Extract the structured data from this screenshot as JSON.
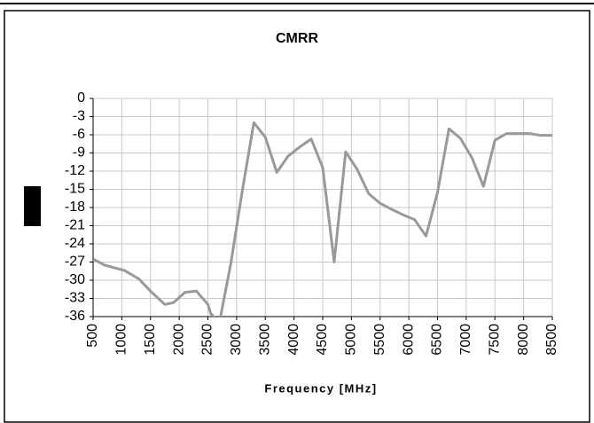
{
  "chart_data": {
    "type": "line",
    "title": "CMRR",
    "x_label": "Frequency [MHz]",
    "x": [
      500,
      700,
      1050,
      1300,
      1500,
      1750,
      1900,
      2100,
      2300,
      2500,
      2550,
      2700,
      2900,
      3100,
      3300,
      3500,
      3700,
      3900,
      4100,
      4300,
      4500,
      4700,
      4900,
      5100,
      5300,
      5500,
      5700,
      5900,
      6100,
      6300,
      6500,
      6700,
      6900,
      7100,
      7300,
      7500,
      7700,
      8100,
      8300,
      8500
    ],
    "series": [
      {
        "name": "CMRR",
        "color": "#999999",
        "values": [
          -26.5,
          -27.5,
          -28.4,
          -29.8,
          -31.8,
          -34,
          -33.7,
          -32,
          -31.8,
          -34,
          -35.5,
          -37,
          -27.2,
          -15.2,
          -4,
          -6.4,
          -12.2,
          -9.5,
          -8,
          -6.7,
          -11.4,
          -27,
          -8.8,
          -11.7,
          -15.7,
          -17.3,
          -18.3,
          -19.2,
          -20,
          -22.7,
          -15.5,
          -5,
          -6.6,
          -9.8,
          -14.5,
          -6.9,
          -5.8,
          -5.8,
          -6.1,
          -6.1
        ]
      }
    ],
    "xlim": [
      500,
      8500
    ],
    "xticks": [
      500,
      1000,
      1500,
      2000,
      2500,
      3000,
      3500,
      4000,
      4500,
      5000,
      5500,
      6000,
      6500,
      7000,
      7500,
      8000,
      8500
    ],
    "ylim": [
      -36,
      0
    ],
    "yticks": [
      0,
      -3,
      -6,
      -9,
      -12,
      -15,
      -18,
      -21,
      -24,
      -27,
      -30,
      -33,
      -36
    ],
    "grid": true
  }
}
